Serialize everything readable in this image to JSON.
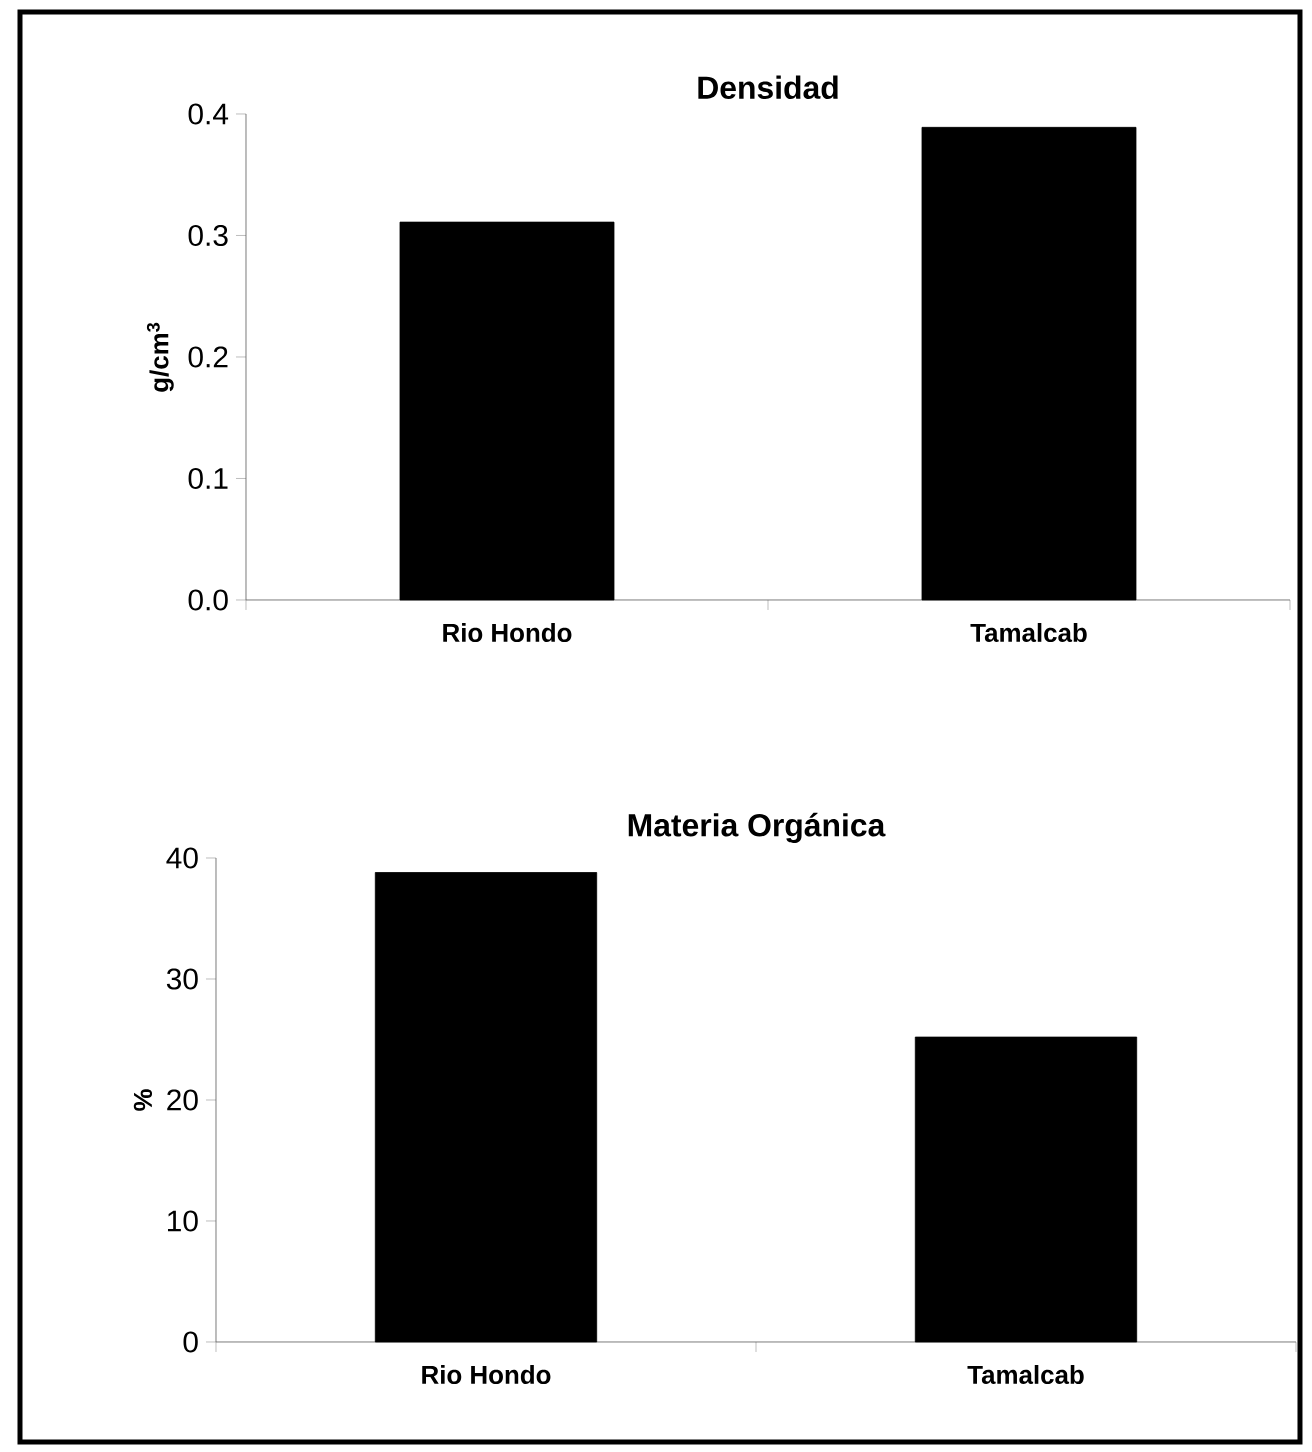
{
  "chart_data": [
    {
      "type": "bar",
      "title": "Densidad",
      "ylabel": "g/cm$^{3}$",
      "categories": [
        "Rio Hondo",
        "Tamalcab"
      ],
      "values": [
        0.311,
        0.389
      ],
      "color": "#000000",
      "ylim": [
        0,
        0.4
      ],
      "yticks": [
        {
          "value": 0,
          "label": "0.0"
        },
        0.1,
        0.2,
        0.3,
        0.4
      ]
    },
    {
      "type": "bar",
      "title": "Materia Orgánica",
      "ylabel": "%",
      "categories": [
        "Rio Hondo",
        "Tamalcab"
      ],
      "values": [
        38.8,
        25.2
      ],
      "color": "#000000",
      "ylim": [
        0,
        40
      ],
      "yticks": [
        0,
        10,
        20,
        30,
        40
      ]
    }
  ]
}
